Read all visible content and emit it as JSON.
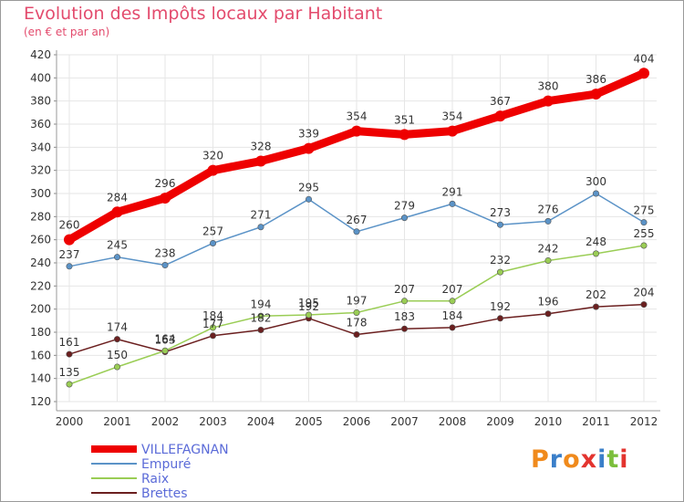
{
  "title": "Evolution des Impôts locaux par Habitant",
  "subtitle": "(en € et par an)",
  "logo": {
    "text": "Proxiti",
    "colors": [
      "#f08a1c",
      "#3a7fc9",
      "#f08a1c",
      "#e3342f",
      "#3a7fc9",
      "#7cbf3c",
      "#e3342f"
    ]
  },
  "chart_data": {
    "type": "line",
    "x": [
      "2000",
      "2001",
      "2002",
      "2003",
      "2004",
      "2005",
      "2006",
      "2007",
      "2008",
      "2009",
      "2010",
      "2011",
      "2012"
    ],
    "ylim": [
      120,
      420
    ],
    "yticks": [
      120,
      140,
      160,
      180,
      200,
      220,
      240,
      260,
      280,
      300,
      320,
      340,
      360,
      380,
      400,
      420
    ],
    "grid": true,
    "legend": "bottom-left",
    "series": [
      {
        "name": "VILLEFAGNAN",
        "color": "#ee0000",
        "values": [
          260,
          284,
          296,
          320,
          328,
          339,
          354,
          351,
          354,
          367,
          380,
          386,
          404
        ]
      },
      {
        "name": "Empuré",
        "color": "#5b93c7",
        "values": [
          237,
          245,
          238,
          257,
          271,
          295,
          267,
          279,
          291,
          273,
          276,
          300,
          275
        ]
      },
      {
        "name": "Raix",
        "color": "#9acd55",
        "values": [
          135,
          150,
          164,
          184,
          194,
          195,
          197,
          207,
          207,
          232,
          242,
          248,
          255
        ]
      },
      {
        "name": "Brettes",
        "color": "#6b1f1f",
        "values": [
          161,
          174,
          163,
          177,
          182,
          192,
          178,
          183,
          184,
          192,
          196,
          202,
          204
        ]
      }
    ]
  }
}
